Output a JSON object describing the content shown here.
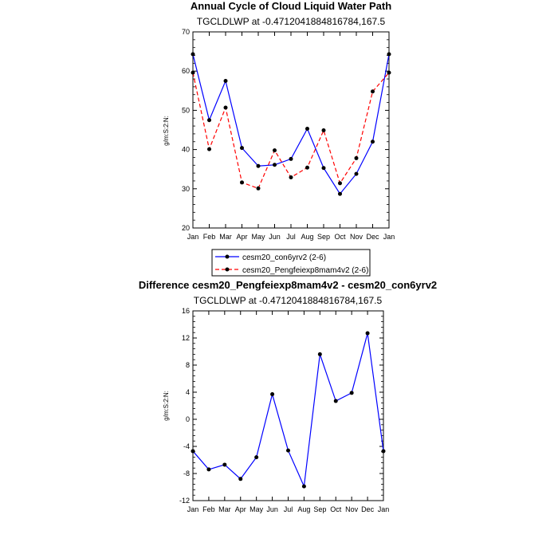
{
  "chart_data": [
    {
      "type": "line",
      "title": "Annual Cycle of Cloud Liquid Water Path",
      "subtitle": "TGCLDLWP at -0.4712041884816784,167.5",
      "ylabel": "g/m:S:2:N:",
      "xlabel": "",
      "categories": [
        "Jan",
        "Feb",
        "Mar",
        "Apr",
        "May",
        "Jun",
        "Jul",
        "Aug",
        "Sep",
        "Oct",
        "Nov",
        "Dec",
        "Jan"
      ],
      "ylim": [
        20,
        70
      ],
      "yticks": [
        "20",
        "30",
        "40",
        "50",
        "60",
        "70"
      ],
      "series": [
        {
          "name": "cesm20_con6yrv2 (2-6)",
          "color": "#0000ff",
          "dash": "solid",
          "values": [
            64.3,
            47.5,
            57.5,
            40.4,
            35.8,
            36.1,
            37.6,
            45.3,
            35.3,
            28.7,
            33.8,
            42.0,
            64.3
          ]
        },
        {
          "name": "cesm20_Pengfeiexp8mam4v2 (2-6)",
          "color": "#ff0000",
          "dash": "dashed",
          "values": [
            59.6,
            40.1,
            50.7,
            31.6,
            30.1,
            39.8,
            32.9,
            35.4,
            44.9,
            31.4,
            37.8,
            54.8,
            59.6
          ]
        }
      ],
      "legend": {
        "position": "bottom",
        "entries": [
          "cesm20_con6yrv2 (2-6)",
          "cesm20_Pengfeiexp8mam4v2 (2-6)"
        ]
      }
    },
    {
      "type": "line",
      "title": "Difference cesm20_Pengfeiexp8mam4v2 - cesm20_con6yrv2",
      "subtitle": "TGCLDLWP at -0.4712041884816784,167.5",
      "ylabel": "g/m:S:2:N:",
      "xlabel": "",
      "categories": [
        "Jan",
        "Feb",
        "Mar",
        "Apr",
        "May",
        "Jun",
        "Jul",
        "Aug",
        "Sep",
        "Oct",
        "Nov",
        "Dec",
        "Jan"
      ],
      "ylim": [
        -12,
        16
      ],
      "yticks": [
        "-12",
        "-8",
        "-4",
        "0",
        "4",
        "8",
        "12",
        "16"
      ],
      "series": [
        {
          "color": "#0000ff",
          "dash": "solid",
          "values": [
            -4.7,
            -7.4,
            -6.7,
            -8.8,
            -5.6,
            3.7,
            -4.6,
            -9.9,
            9.6,
            2.7,
            3.9,
            12.7,
            -4.7
          ]
        }
      ]
    }
  ]
}
